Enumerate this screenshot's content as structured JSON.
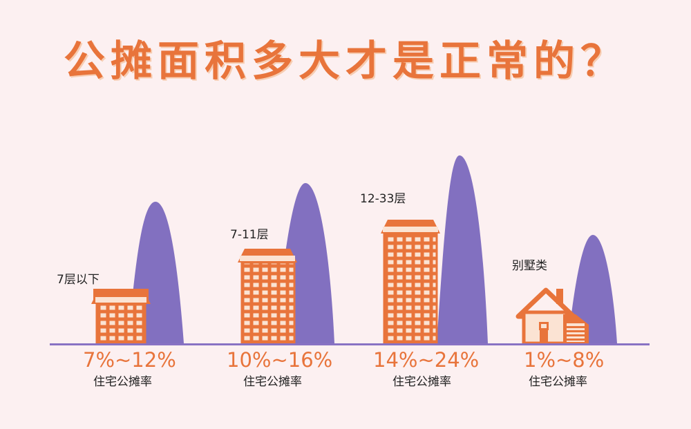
{
  "title": "公摊面积多大才是正常的？",
  "colors": {
    "accent": "#e8743b",
    "peak": "#8270c0",
    "background": "#fcf0f1"
  },
  "categories": [
    {
      "floors": "7层以下",
      "rate": "7%~12%",
      "caption": "住宅公摊率",
      "icon": "low-rise-building-icon"
    },
    {
      "floors": "7-11层",
      "rate": "10%~16%",
      "caption": "住宅公摊率",
      "icon": "mid-rise-building-icon"
    },
    {
      "floors": "12-33层",
      "rate": "14%~24%",
      "caption": "住宅公摊率",
      "icon": "high-rise-building-icon"
    },
    {
      "floors": "别墅类",
      "rate": "1%~8%",
      "caption": "住宅公摊率",
      "icon": "villa-house-icon"
    }
  ]
}
